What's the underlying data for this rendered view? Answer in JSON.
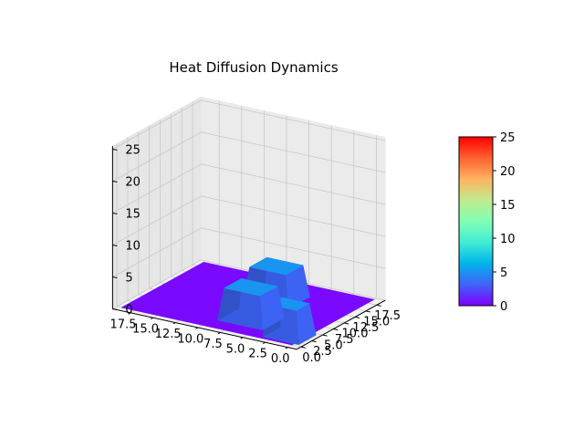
{
  "chart_data": {
    "type": "surface3d",
    "title": "Heat Diffusion Dynamics",
    "xlabel": "",
    "ylabel": "",
    "zlabel": "",
    "x_range": [
      0,
      19
    ],
    "y_range": [
      0,
      19
    ],
    "z_range": [
      0,
      25
    ],
    "x_ticks": [
      "0.0",
      "2.5",
      "5.0",
      "7.5",
      "10.0",
      "12.5",
      "15.0",
      "17.5"
    ],
    "y_ticks": [
      "0.0",
      "2.5",
      "5.0",
      "7.5",
      "10.0",
      "12.5",
      "15.0",
      "17.5"
    ],
    "z_ticks": [
      "0",
      "5",
      "10",
      "15",
      "20",
      "25"
    ],
    "base_temperature": 0,
    "hot_regions": [
      {
        "x": [
          0,
          3
        ],
        "y": [
          1,
          4
        ],
        "value": 5
      },
      {
        "x": [
          5,
          9
        ],
        "y": [
          3,
          7
        ],
        "value": 5
      },
      {
        "x": [
          6,
          10
        ],
        "y": [
          11,
          15
        ],
        "value": 5
      }
    ],
    "colormap": "rainbow",
    "colorbar": {
      "ticks": [
        "0",
        "5",
        "10",
        "15",
        "20",
        "25"
      ],
      "range": [
        0,
        25
      ],
      "colors": [
        "#8000ff",
        "#4062fa",
        "#00b5eb",
        "#40ecd4",
        "#80ffb4",
        "#c0eb8d",
        "#ffb360",
        "#ff6030",
        "#ff0000"
      ]
    },
    "grid": true,
    "pane_color": "#ebebeb"
  }
}
